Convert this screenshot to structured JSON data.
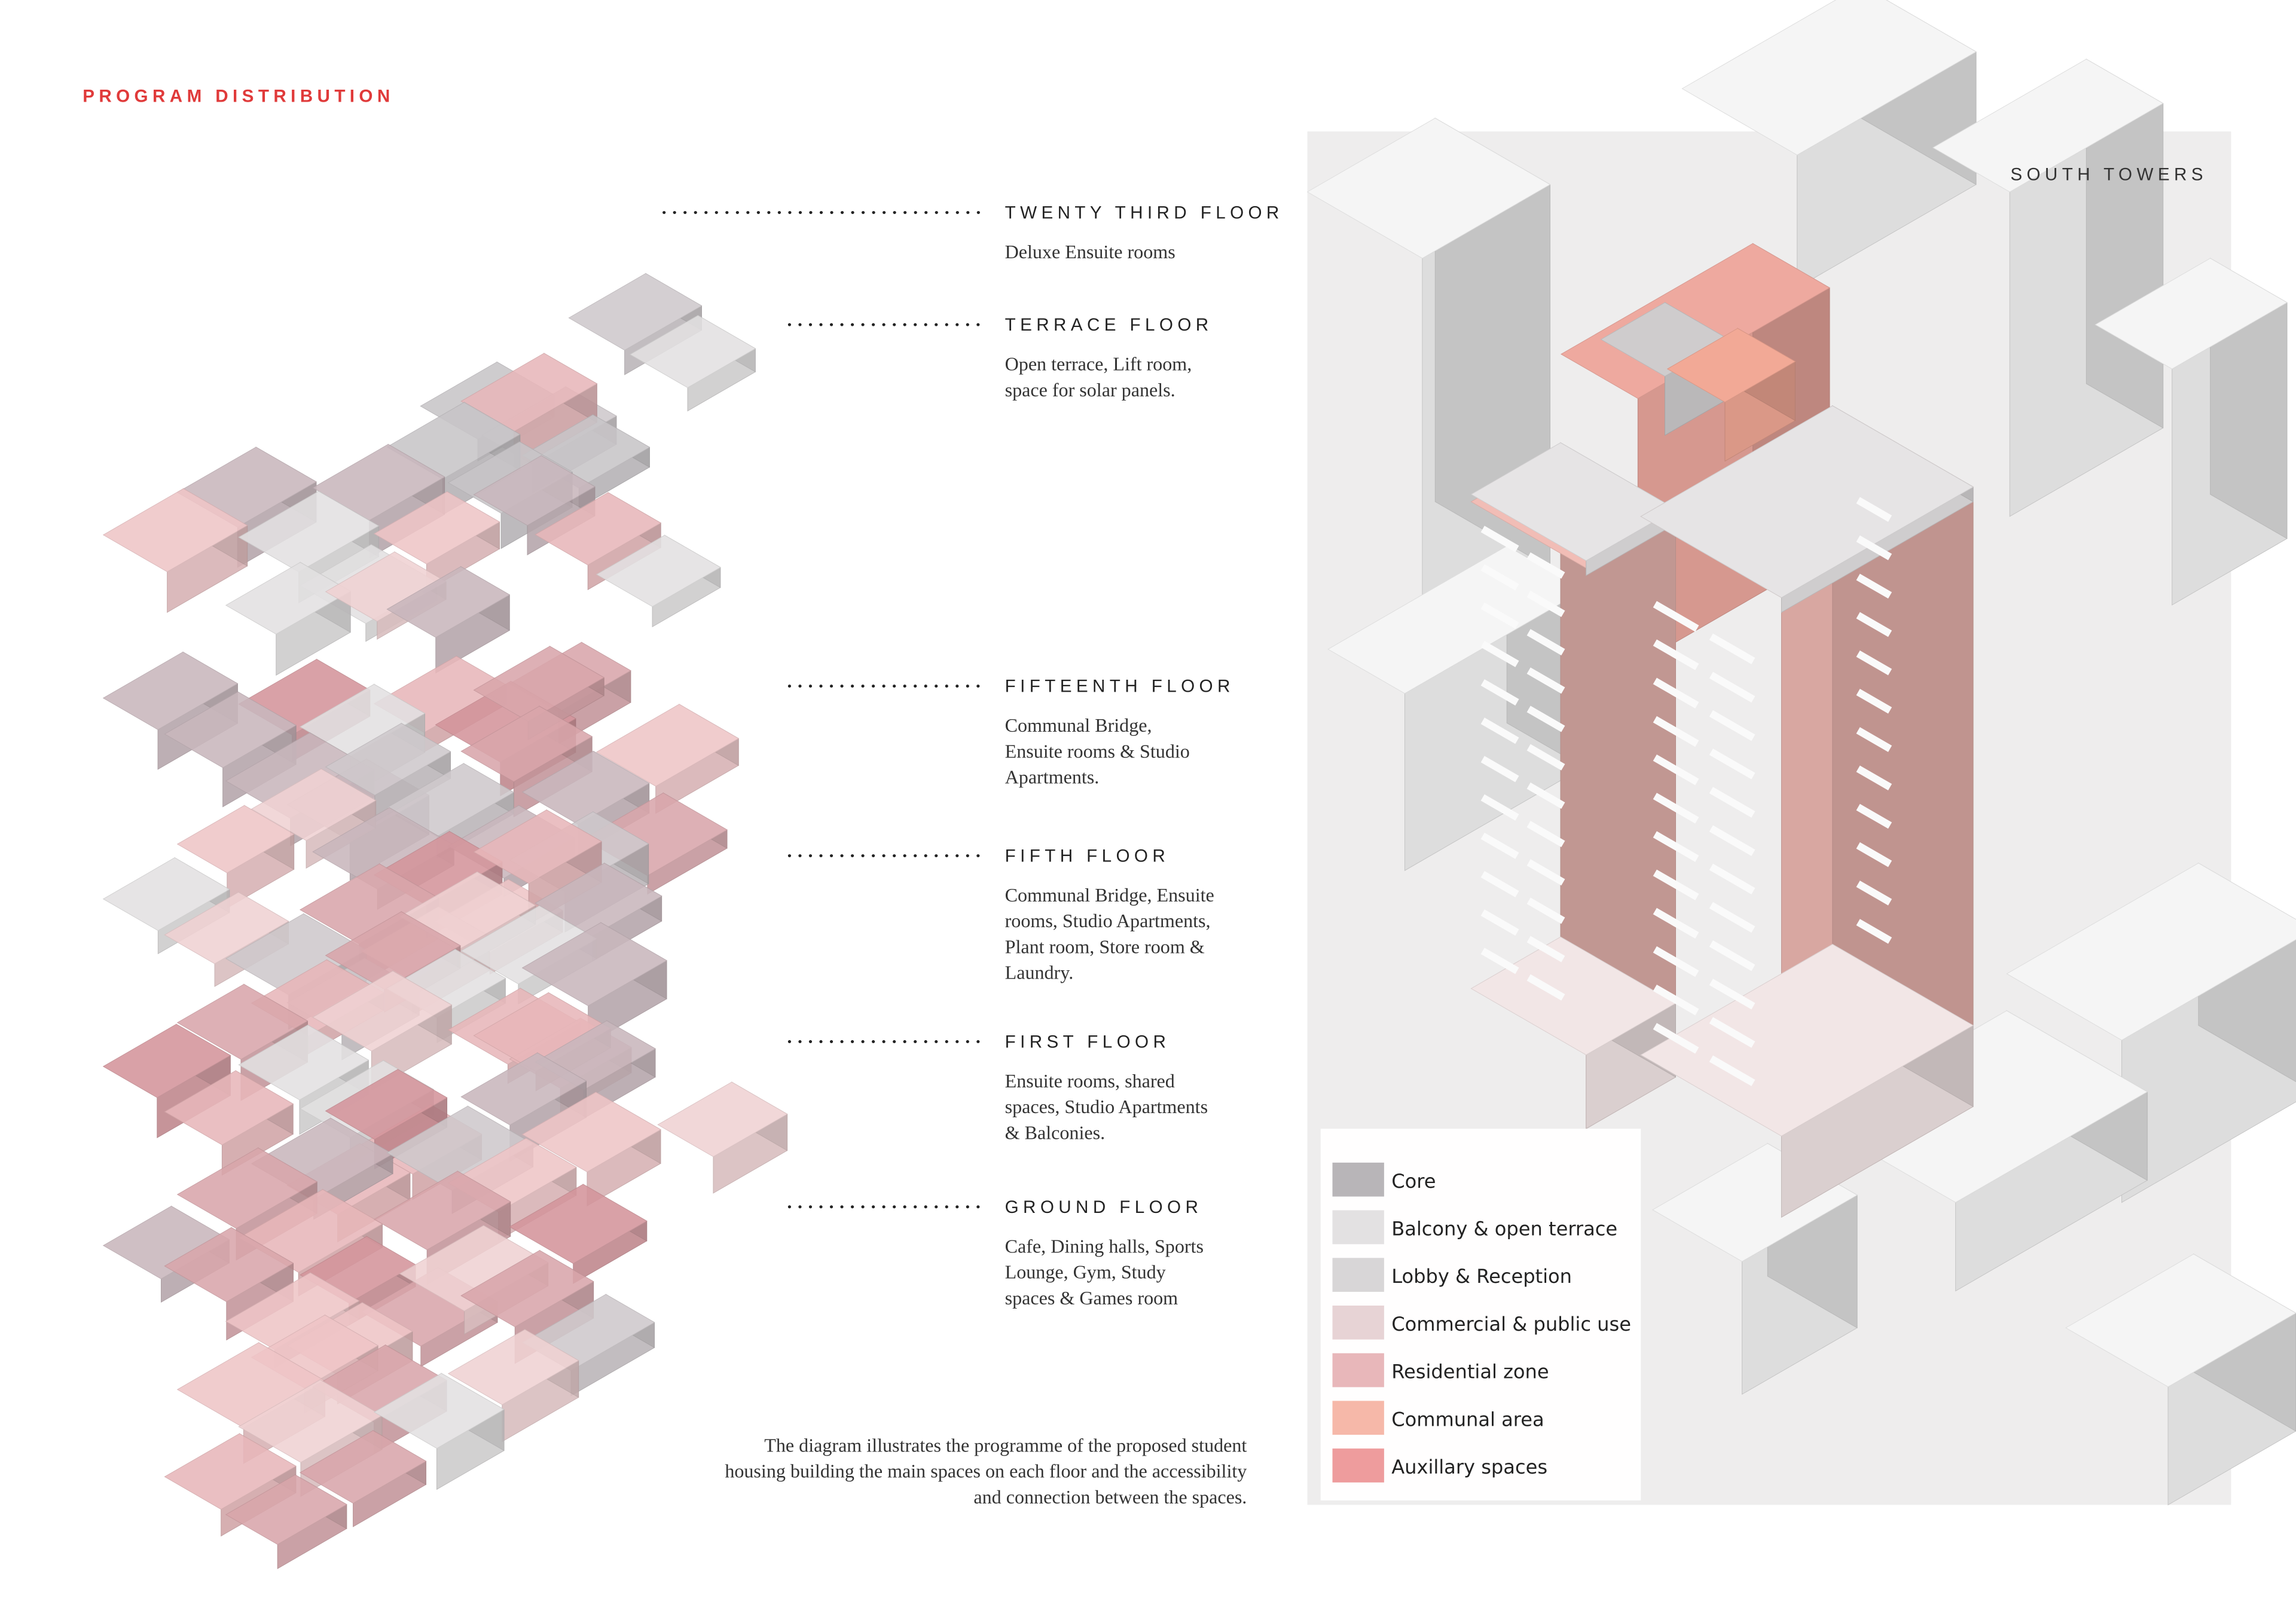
{
  "header": {
    "title": "PROGRAM DISTRIBUTION"
  },
  "floors": [
    {
      "name": "TWENTY THIRD FLOOR",
      "description": [
        "Deluxe Ensuite rooms"
      ]
    },
    {
      "name": "TERRACE FLOOR",
      "description": [
        "Open terrace, Lift room,",
        "space for solar panels."
      ]
    },
    {
      "name": "FIFTEENTH FLOOR",
      "description": [
        "Communal Bridge,",
        "Ensuite rooms & Studio",
        "Apartments."
      ]
    },
    {
      "name": "FIFTH FLOOR",
      "description": [
        "Communal Bridge, Ensuite",
        "rooms, Studio Apartments,",
        "Plant room, Store room &",
        "Laundry."
      ]
    },
    {
      "name": "FIRST FLOOR",
      "description": [
        "Ensuite rooms, shared",
        "spaces, Studio Apartments",
        "& Balconies."
      ]
    },
    {
      "name": "GROUND FLOOR",
      "description": [
        "Cafe, Dining halls, Sports",
        "Lounge, Gym, Study",
        "spaces & Games room"
      ]
    }
  ],
  "view": {
    "label": "SOUTH TOWERS"
  },
  "legend": [
    {
      "label": "Core",
      "color": "#b8b5b8"
    },
    {
      "label": "Balcony & open terrace",
      "color": "#e3e1e2"
    },
    {
      "label": "Lobby & Reception",
      "color": "#d8d6d7"
    },
    {
      "label": "Commercial & public use",
      "color": "#e7d3d5"
    },
    {
      "label": "Residential zone",
      "color": "#e8b7ba"
    },
    {
      "label": "Communal area",
      "color": "#f6b8a9"
    },
    {
      "label": "Auxillary spaces",
      "color": "#ee9c9d"
    }
  ],
  "caption": [
    "The diagram illustrates the programme of the proposed student",
    "housing building the main spaces on each floor and the accessibility",
    "and connection between the spaces."
  ]
}
